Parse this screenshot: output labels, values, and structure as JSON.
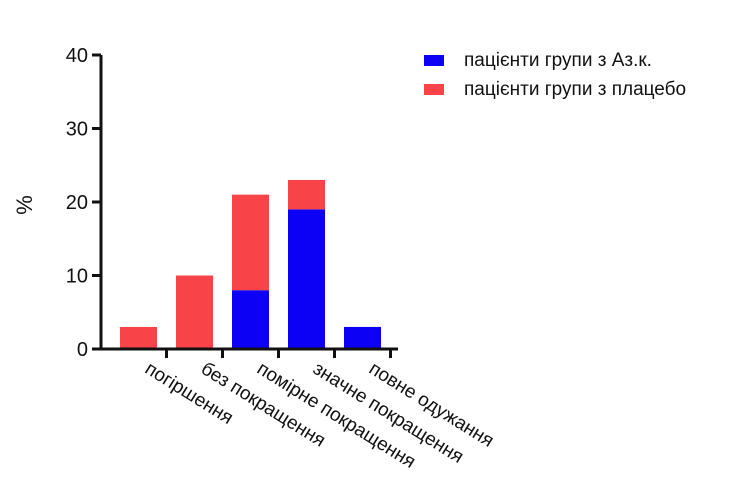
{
  "chart_data": {
    "type": "bar",
    "stacked": true,
    "title": "",
    "xlabel": "",
    "ylabel": "%",
    "ylim": [
      0,
      40
    ],
    "yticks": [
      0,
      10,
      20,
      30,
      40
    ],
    "grid": false,
    "legend_position": "top-right",
    "categories": [
      "погіршення",
      "без покращення",
      "помірне покращення",
      "значне покращення",
      "повне одужання"
    ],
    "series": [
      {
        "name": "пацієнти групи з Аз.к.",
        "color": "#0c00f5",
        "values": [
          0,
          0,
          8,
          19,
          3
        ]
      },
      {
        "name": "пацієнти групи з плацебо",
        "color": "#f84448",
        "values": [
          3,
          10,
          13,
          4,
          0
        ]
      }
    ]
  }
}
